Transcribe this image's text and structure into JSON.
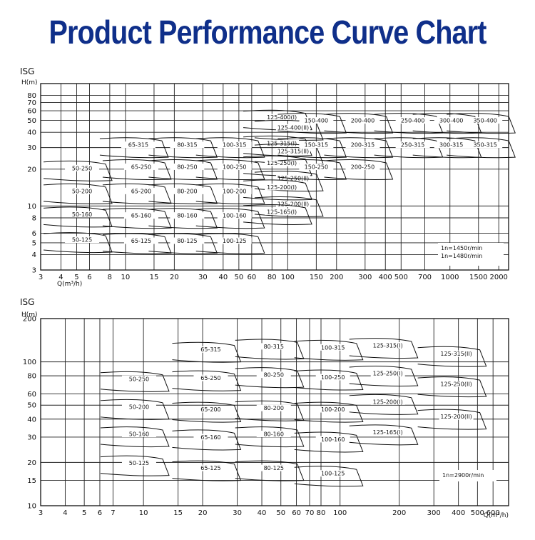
{
  "title": "Product Performance Curve Chart",
  "chart_data": [
    {
      "type": "line",
      "id": "top",
      "series_label": "ISG",
      "ylabel": "H(m)",
      "xlabel": "Q(m³/h)",
      "x_scale": "log",
      "y_scale": "log",
      "xlim": [
        3,
        2300
      ],
      "ylim": [
        3,
        100
      ],
      "x_ticks": [
        3,
        4,
        5,
        6,
        8,
        10,
        15,
        20,
        30,
        40,
        50,
        60,
        80,
        100,
        150,
        200,
        300,
        400,
        500,
        700,
        1000,
        1500,
        2000
      ],
      "y_ticks": [
        3,
        4,
        5,
        6,
        8,
        10,
        20,
        30,
        40,
        50,
        60,
        70,
        80
      ],
      "speed_notes": [
        "1n=1450r/min",
        "1n=1480r/min"
      ],
      "pumps": [
        {
          "name": "50-250",
          "x": 5.4,
          "y": 20
        },
        {
          "name": "50-200",
          "x": 5.4,
          "y": 13
        },
        {
          "name": "50-160",
          "x": 5.4,
          "y": 8.4
        },
        {
          "name": "50-125",
          "x": 5.4,
          "y": 5.2
        },
        {
          "name": "65-315",
          "x": 12,
          "y": 31
        },
        {
          "name": "65-250",
          "x": 12.5,
          "y": 20.5
        },
        {
          "name": "65-200",
          "x": 12.5,
          "y": 13
        },
        {
          "name": "65-160",
          "x": 12.5,
          "y": 8.2
        },
        {
          "name": "65-125",
          "x": 12.5,
          "y": 5.1
        },
        {
          "name": "80-315",
          "x": 24,
          "y": 31
        },
        {
          "name": "80-250",
          "x": 24,
          "y": 20.5
        },
        {
          "name": "80-200",
          "x": 24,
          "y": 13
        },
        {
          "name": "80-160",
          "x": 24,
          "y": 8.2
        },
        {
          "name": "80-125",
          "x": 24,
          "y": 5.1
        },
        {
          "name": "100-315",
          "x": 47,
          "y": 31
        },
        {
          "name": "100-250",
          "x": 47,
          "y": 20.5
        },
        {
          "name": "100-200",
          "x": 47,
          "y": 13
        },
        {
          "name": "100-160",
          "x": 47,
          "y": 8.2
        },
        {
          "name": "100-125",
          "x": 47,
          "y": 5.1
        },
        {
          "name": "125-400(I)",
          "x": 92,
          "y": 52
        },
        {
          "name": "125-400(II)",
          "x": 108,
          "y": 43
        },
        {
          "name": "125-315(I)",
          "x": 92,
          "y": 32
        },
        {
          "name": "125-315(II)",
          "x": 108,
          "y": 27.5
        },
        {
          "name": "125-250(I)",
          "x": 92,
          "y": 22
        },
        {
          "name": "125-250(II)",
          "x": 108,
          "y": 16.5
        },
        {
          "name": "125-200(I)",
          "x": 92,
          "y": 14
        },
        {
          "name": "125-200(II)",
          "x": 108,
          "y": 10.2
        },
        {
          "name": "125-165(I)",
          "x": 92,
          "y": 8.8
        },
        {
          "name": "150-400",
          "x": 150,
          "y": 49
        },
        {
          "name": "150-315",
          "x": 150,
          "y": 31
        },
        {
          "name": "150-250",
          "x": 150,
          "y": 20.5
        },
        {
          "name": "200-400",
          "x": 290,
          "y": 49
        },
        {
          "name": "200-315",
          "x": 290,
          "y": 31
        },
        {
          "name": "200-250",
          "x": 290,
          "y": 20.5
        },
        {
          "name": "250-400",
          "x": 590,
          "y": 49
        },
        {
          "name": "250-315",
          "x": 590,
          "y": 31
        },
        {
          "name": "300-400",
          "x": 1020,
          "y": 49
        },
        {
          "name": "300-315",
          "x": 1020,
          "y": 31
        },
        {
          "name": "350-400",
          "x": 1650,
          "y": 49
        },
        {
          "name": "350-315",
          "x": 1650,
          "y": 31
        }
      ]
    },
    {
      "type": "line",
      "id": "bottom",
      "series_label": "ISG",
      "ylabel": "H(m)",
      "xlabel": "Q(m³/h)",
      "x_scale": "log",
      "y_scale": "log",
      "xlim": [
        3,
        720
      ],
      "ylim": [
        10,
        200
      ],
      "x_ticks": [
        3,
        4,
        5,
        6,
        7,
        10,
        15,
        20,
        30,
        40,
        50,
        60,
        70,
        80,
        100,
        200,
        300,
        400,
        500,
        600
      ],
      "y_ticks": [
        10,
        15,
        20,
        30,
        40,
        50,
        60,
        80,
        100,
        200
      ],
      "x_tick_labels": [
        "3",
        "4",
        "5",
        "6",
        "7",
        "10",
        "15",
        "20",
        "30",
        "40",
        "50",
        "60",
        "70",
        "80",
        "100",
        "200",
        "300",
        "400",
        "500",
        "600"
      ],
      "speed_notes": [
        "1n=2900r/min"
      ],
      "pumps": [
        {
          "name": "50-250",
          "x": 9.5,
          "y": 75
        },
        {
          "name": "50-200",
          "x": 9.5,
          "y": 48
        },
        {
          "name": "50-160",
          "x": 9.5,
          "y": 31
        },
        {
          "name": "50-125",
          "x": 9.5,
          "y": 19.5
        },
        {
          "name": "65-315",
          "x": 22,
          "y": 120
        },
        {
          "name": "65-250",
          "x": 22,
          "y": 76
        },
        {
          "name": "65-200",
          "x": 22,
          "y": 46
        },
        {
          "name": "65-160",
          "x": 22,
          "y": 29.5
        },
        {
          "name": "65-125",
          "x": 22,
          "y": 18
        },
        {
          "name": "80-315",
          "x": 46,
          "y": 126
        },
        {
          "name": "80-250",
          "x": 46,
          "y": 80
        },
        {
          "name": "80-200",
          "x": 46,
          "y": 47
        },
        {
          "name": "80-160",
          "x": 46,
          "y": 31
        },
        {
          "name": "80-125",
          "x": 46,
          "y": 18
        },
        {
          "name": "100-315",
          "x": 92,
          "y": 124
        },
        {
          "name": "100-250",
          "x": 92,
          "y": 77
        },
        {
          "name": "100-200",
          "x": 92,
          "y": 46
        },
        {
          "name": "100-160",
          "x": 92,
          "y": 28.5
        },
        {
          "name": "100-125",
          "x": 92,
          "y": 16.5
        },
        {
          "name": "125-315(I)",
          "x": 175,
          "y": 128
        },
        {
          "name": "125-315(II)",
          "x": 390,
          "y": 112
        },
        {
          "name": "125-250(I)",
          "x": 175,
          "y": 82
        },
        {
          "name": "125-250(II)",
          "x": 390,
          "y": 69
        },
        {
          "name": "125-200(I)",
          "x": 175,
          "y": 52
        },
        {
          "name": "125-200(II)",
          "x": 390,
          "y": 41
        },
        {
          "name": "125-165(I)",
          "x": 175,
          "y": 32
        }
      ]
    }
  ]
}
